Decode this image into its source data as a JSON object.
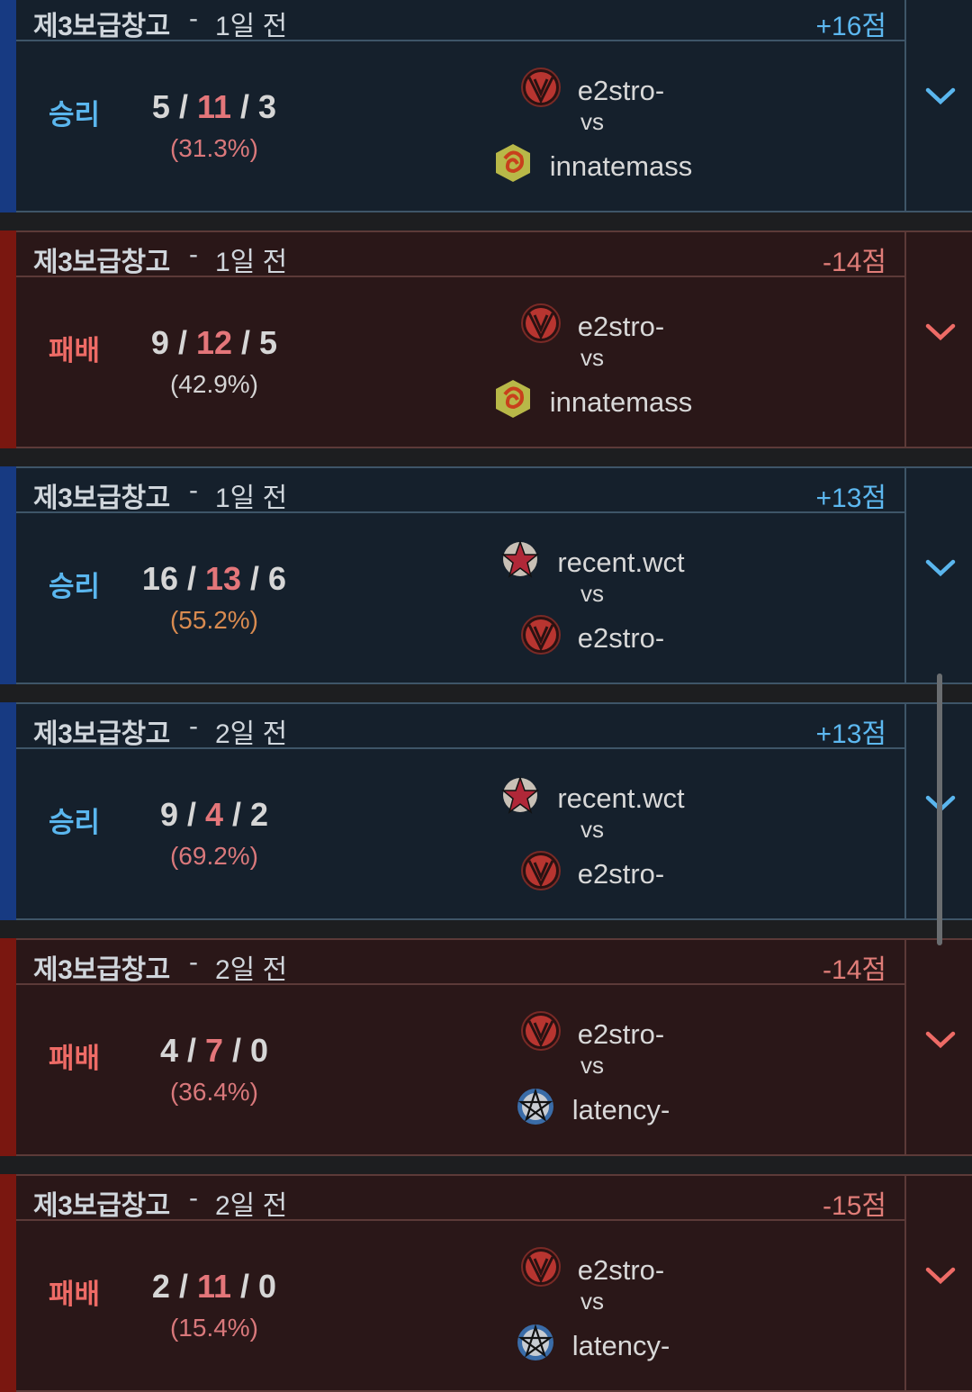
{
  "colors": {
    "win_accent": "#173a82",
    "loss_accent": "#7a1710",
    "win_text": "#5ab6ee",
    "loss_text": "#ee6b66",
    "death": "#e4767a"
  },
  "matches": [
    {
      "outcome": "win",
      "mode": "제3보급창고",
      "separator": "-",
      "ago": "1일 전",
      "lp": "+16점",
      "result": "승리",
      "kills": "5",
      "deaths": "11",
      "assists": "3",
      "kp": "(31.3%)",
      "kp_color": "#d9787b",
      "player1": {
        "name": "e2stro-",
        "emblem": "v-emblem"
      },
      "vs": "vs",
      "player2": {
        "name": "innatemass",
        "emblem": "dragon-emblem"
      }
    },
    {
      "outcome": "loss",
      "mode": "제3보급창고",
      "separator": "-",
      "ago": "1일 전",
      "lp": "-14점",
      "result": "패배",
      "kills": "9",
      "deaths": "12",
      "assists": "5",
      "kp": "(42.9%)",
      "kp_color": "#d4d4d4",
      "player1": {
        "name": "e2stro-",
        "emblem": "v-emblem"
      },
      "vs": "vs",
      "player2": {
        "name": "innatemass",
        "emblem": "dragon-emblem"
      }
    },
    {
      "outcome": "win",
      "mode": "제3보급창고",
      "separator": "-",
      "ago": "1일 전",
      "lp": "+13점",
      "result": "승리",
      "kills": "16",
      "deaths": "13",
      "assists": "6",
      "kp": "(55.2%)",
      "kp_color": "#d98b50",
      "player1": {
        "name": "recent.wct",
        "emblem": "star-emblem"
      },
      "vs": "vs",
      "player2": {
        "name": "e2stro-",
        "emblem": "v-emblem"
      }
    },
    {
      "outcome": "win",
      "mode": "제3보급창고",
      "separator": "-",
      "ago": "2일 전",
      "lp": "+13점",
      "result": "승리",
      "kills": "9",
      "deaths": "4",
      "assists": "2",
      "kp": "(69.2%)",
      "kp_color": "#d9787b",
      "player1": {
        "name": "recent.wct",
        "emblem": "star-emblem"
      },
      "vs": "vs",
      "player2": {
        "name": "e2stro-",
        "emblem": "v-emblem"
      }
    },
    {
      "outcome": "loss",
      "mode": "제3보급창고",
      "separator": "-",
      "ago": "2일 전",
      "lp": "-14점",
      "result": "패배",
      "kills": "4",
      "deaths": "7",
      "assists": "0",
      "kp": "(36.4%)",
      "kp_color": "#d9787b",
      "player1": {
        "name": "e2stro-",
        "emblem": "v-emblem"
      },
      "vs": "vs",
      "player2": {
        "name": "latency-",
        "emblem": "pentagram-emblem"
      }
    },
    {
      "outcome": "loss",
      "mode": "제3보급창고",
      "separator": "-",
      "ago": "2일 전",
      "lp": "-15점",
      "result": "패배",
      "kills": "2",
      "deaths": "11",
      "assists": "0",
      "kp": "(15.4%)",
      "kp_color": "#d9787b",
      "player1": {
        "name": "e2stro-",
        "emblem": "v-emblem"
      },
      "vs": "vs",
      "player2": {
        "name": "latency-",
        "emblem": "pentagram-emblem"
      }
    }
  ]
}
